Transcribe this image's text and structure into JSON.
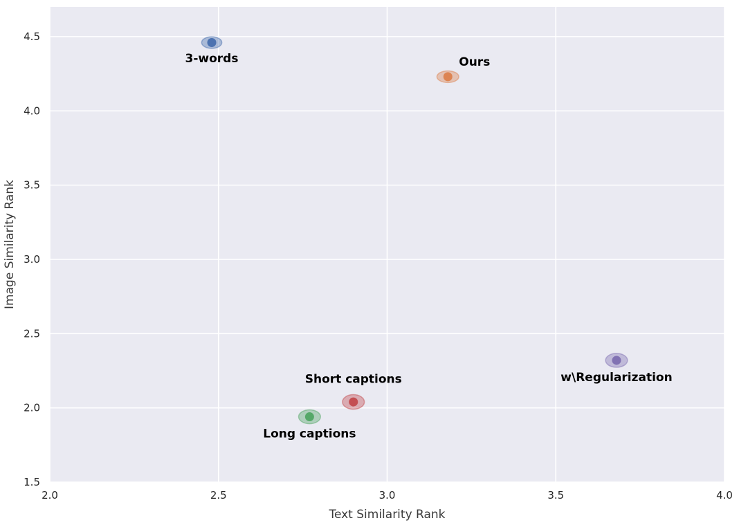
{
  "chart_data": {
    "type": "scatter",
    "title": "",
    "xlabel": "Text Similarity Rank",
    "ylabel": "Image Similarity Rank",
    "xlim": [
      2.0,
      4.0
    ],
    "ylim": [
      1.5,
      4.7
    ],
    "x_ticks": [
      "2.0",
      "2.5",
      "3.0",
      "3.5",
      "4.0"
    ],
    "y_ticks": [
      "1.5",
      "2.0",
      "2.5",
      "3.0",
      "3.5",
      "4.0",
      "4.5"
    ],
    "grid": true,
    "background": "#eaeaf2",
    "points": [
      {
        "label": "3-words",
        "x": 2.48,
        "y": 4.46,
        "x_spread": 0.06,
        "y_spread": 0.06,
        "color": "#4c72b0",
        "label_pos": "below"
      },
      {
        "label": "Ours",
        "x": 3.18,
        "y": 4.23,
        "x_spread": 0.065,
        "y_spread": 0.06,
        "color": "#dd8452",
        "label_pos": "above-right"
      },
      {
        "label": "w\\Regularization",
        "x": 3.68,
        "y": 2.32,
        "x_spread": 0.065,
        "y_spread": 0.075,
        "color": "#8172b3",
        "label_pos": "below"
      },
      {
        "label": "Short captions",
        "x": 2.9,
        "y": 2.04,
        "x_spread": 0.065,
        "y_spread": 0.08,
        "color": "#c44e52",
        "label_pos": "above"
      },
      {
        "label": "Long captions",
        "x": 2.77,
        "y": 1.94,
        "x_spread": 0.065,
        "y_spread": 0.075,
        "color": "#55a868",
        "label_pos": "below"
      }
    ]
  }
}
